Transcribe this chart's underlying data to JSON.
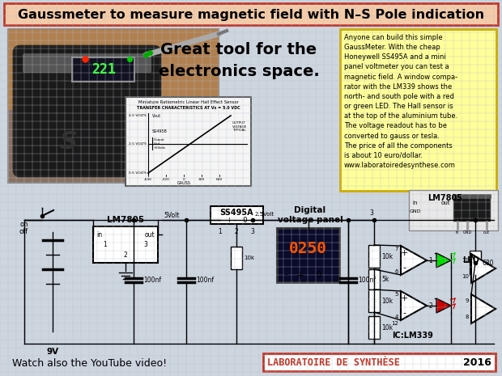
{
  "title": "Gaussmeter to measure magnetic field with N–S Pole indication",
  "title_color": "#c0392b",
  "title_bg": "#f5cba7",
  "bg_color": "#cdd5df",
  "grid_color": "#b8bfcc",
  "footer_left": "Watch also the YouTube video!",
  "footer_brand": "LABORATOIRE DE SYNTHÈSE",
  "footer_year": "2016",
  "footer_brand_color": "#c0392b",
  "footer_box_color": "#c0392b",
  "yellow_box_text": "Anyone can build this simple\nGaussMeter. With the cheap\nHoneywell SS495A and a mini\npanel voltmeter you can test a\nmagnetic field. A window compa-\nrator with the LM339 shows the\nnorth- and south pole with a red\nor green LED. The Hall sensor is\nat the top of the aluminium tube.\nThe voltage readout has to be\nconverted to gauss or tesla.\nThe price of all the components\nis about 10 euro/dollar.\nwww.laboratoiredesynthese.com",
  "yellow_box_color": "#ffff99",
  "yellow_box_border": "#ccaa00",
  "tagline": "Great tool for the\nelectronics space.",
  "tagline_color": "#000000"
}
